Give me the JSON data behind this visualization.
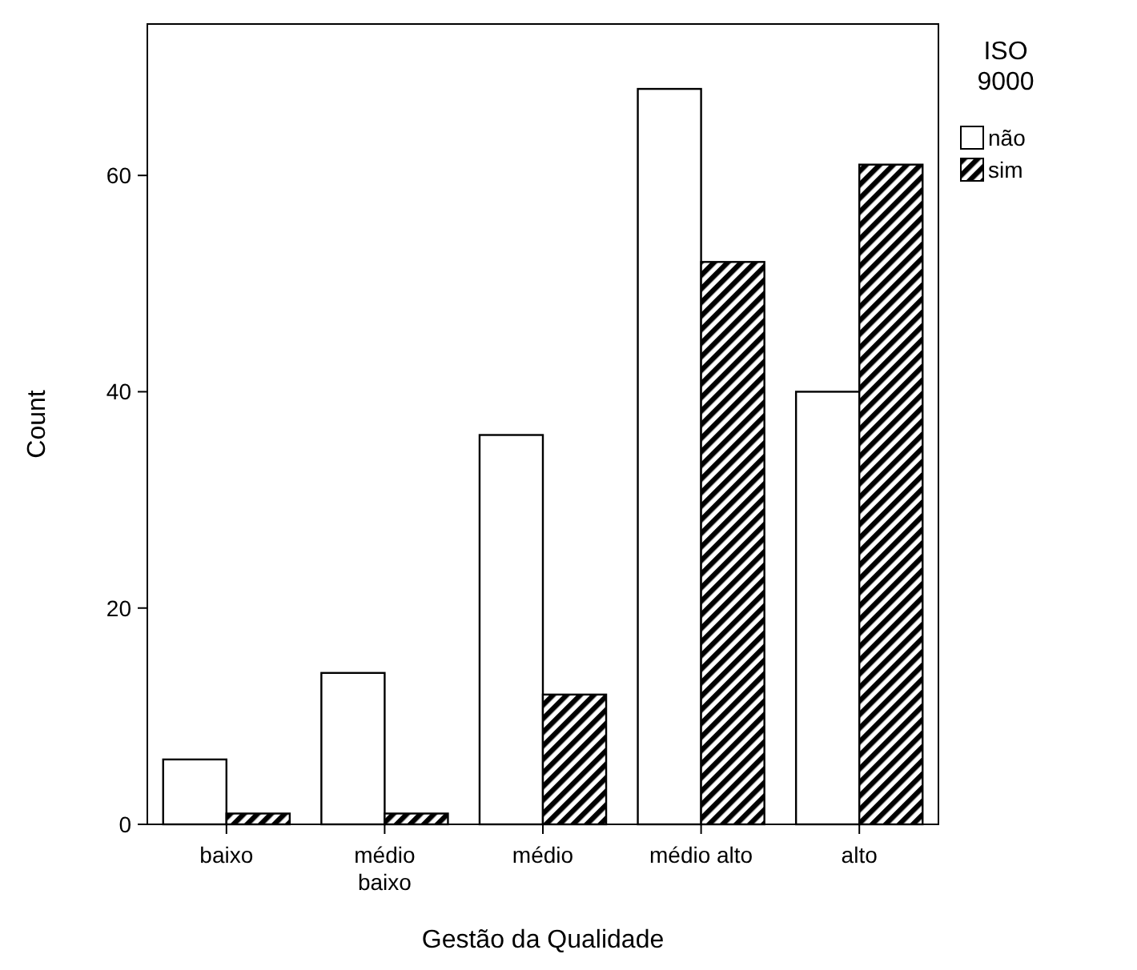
{
  "chart_data": {
    "type": "bar",
    "xlabel": "Gestão da Qualidade",
    "ylabel": "Count",
    "legend_title": "ISO 9000",
    "categories": [
      "baixo",
      "médio\nbaixo",
      "médio",
      "médio alto",
      "alto"
    ],
    "series": [
      {
        "name": "não",
        "color": "#ffffff",
        "values": [
          6,
          14,
          36,
          68,
          40
        ]
      },
      {
        "name": "sim",
        "color": "#000000",
        "values": [
          1,
          1,
          12,
          52,
          61
        ]
      }
    ],
    "ylim": [
      0,
      74
    ],
    "yticks": [
      0,
      20,
      40,
      60
    ],
    "grid": false,
    "legend": "top right"
  }
}
